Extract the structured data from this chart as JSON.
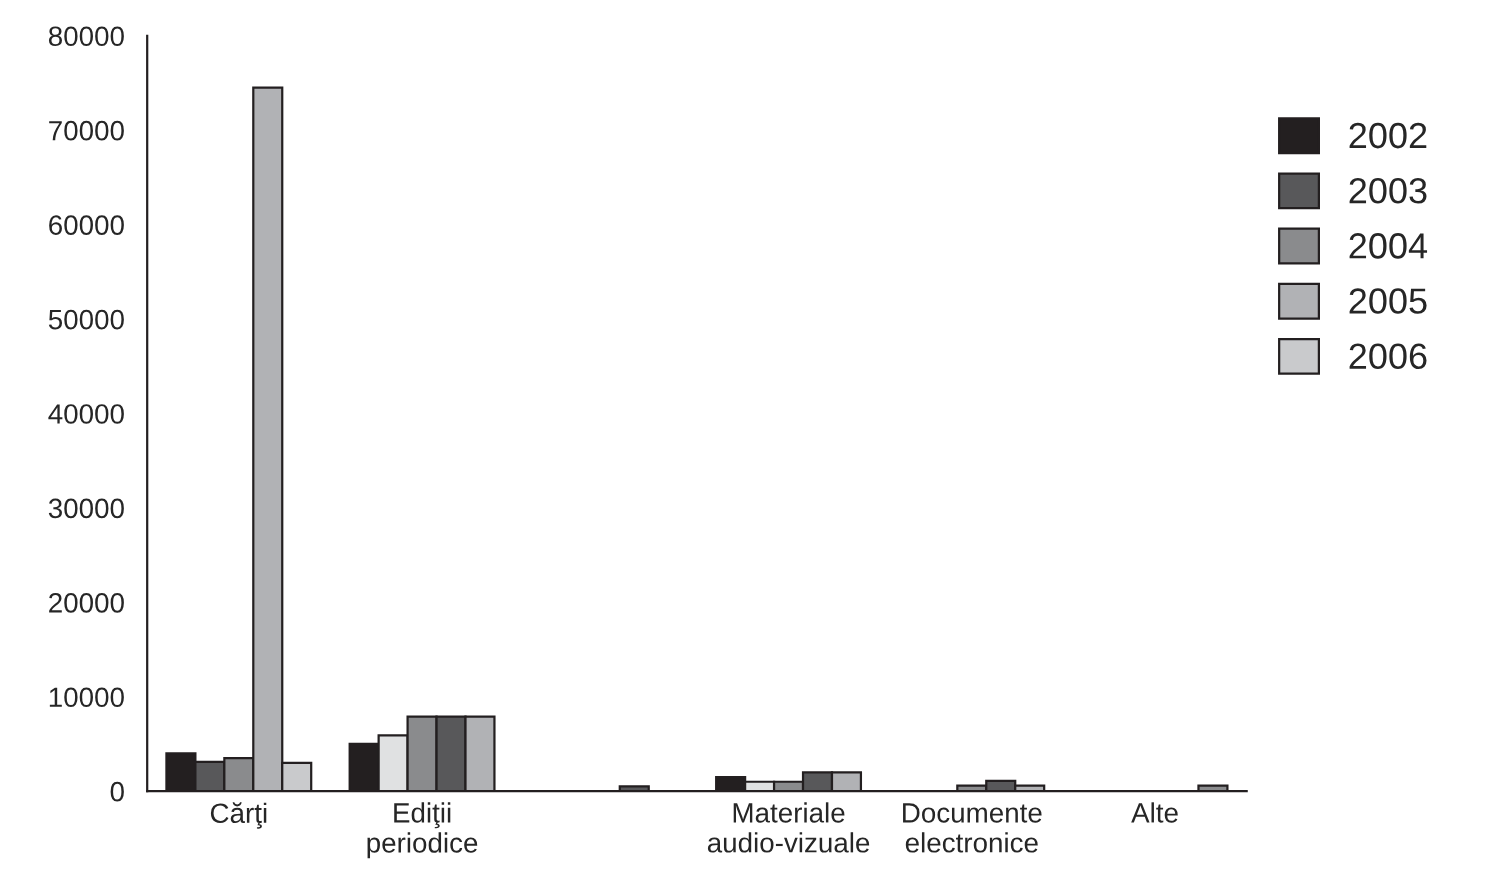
{
  "chart_data": {
    "type": "bar",
    "categories": [
      "Cărţi",
      "Ediţii\nperiodice",
      null,
      "Materiale\naudio-vizuale",
      "Documente\nelectronice",
      "Alte"
    ],
    "series": [
      {
        "name": "2002",
        "color": "#231f20",
        "values": [
          4000,
          5000,
          null,
          1500,
          null,
          null
        ],
        "colors": [
          "#231f20",
          "#231f20",
          "#231f20",
          "#231f20",
          "#231f20",
          "#231f20"
        ]
      },
      {
        "name": "2003",
        "color": "#58585a",
        "values": [
          3100,
          5900,
          null,
          1000,
          null,
          null
        ],
        "colors": [
          "#58585a",
          "#e0e1e2",
          "#58585a",
          "#e0e1e2",
          "#58585a",
          "#58585a"
        ]
      },
      {
        "name": "2004",
        "color": "#8a8b8d",
        "values": [
          3500,
          7900,
          null,
          1000,
          600,
          null
        ],
        "colors": [
          "#8a8b8d",
          "#8a8b8d",
          "#8a8b8d",
          "#8a8b8d",
          "#8a8b8d",
          "#8a8b8d"
        ]
      },
      {
        "name": "2005",
        "color": "#b1b2b5",
        "values": [
          74500,
          7900,
          500,
          2000,
          1100,
          null
        ],
        "colors": [
          "#b1b2b5",
          "#58585a",
          "#58585a",
          "#58585a",
          "#58585a",
          "#b1b2b5"
        ]
      },
      {
        "name": "2006",
        "color": "#c9cacc",
        "values": [
          3000,
          7900,
          null,
          2000,
          600,
          600
        ],
        "colors": [
          "#c9cacc",
          "#b1b2b5",
          "#c9cacc",
          "#b1b2b5",
          "#b1b2b5",
          "#8a8b8d"
        ]
      }
    ],
    "ylim": [
      0,
      80000
    ],
    "yticks": [
      0,
      10000,
      20000,
      30000,
      40000,
      50000,
      60000,
      70000,
      80000
    ],
    "grid": false,
    "legend": "right"
  }
}
